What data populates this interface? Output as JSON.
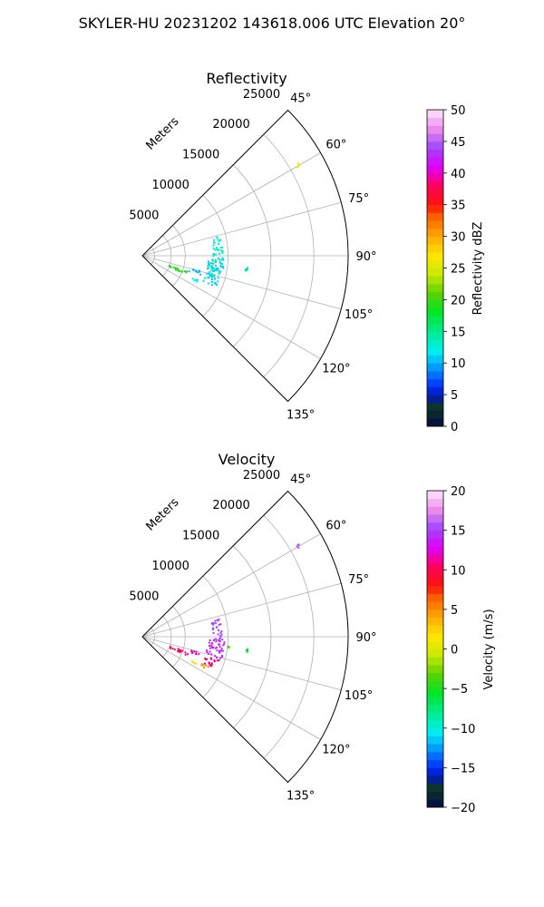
{
  "figure": {
    "title": "SKYLER-HU  20231202  143618.006 UTC Elevation 20°"
  },
  "chart_data": [
    {
      "type": "scatter",
      "projection": "polar-sector",
      "title": "Reflectivity",
      "radial_axis": {
        "label": "Meters",
        "ticks": [
          5000,
          10000,
          15000,
          20000,
          25000
        ],
        "tick_labels": [
          "5000",
          "10000",
          "15000",
          "20000",
          "25000"
        ],
        "rlim": [
          0,
          24000
        ]
      },
      "azimuth_axis": {
        "ticks": [
          45,
          60,
          75,
          90,
          105,
          120,
          135
        ],
        "tick_labels": [
          "45°",
          "60°",
          "75°",
          "90°",
          "105°",
          "120°",
          "135°"
        ],
        "range": [
          45,
          135
        ]
      },
      "grid": true,
      "colorbar": {
        "label": "Reflectivity dBZ",
        "range": [
          0,
          50
        ],
        "ticks": [
          "0",
          "5",
          "10",
          "15",
          "20",
          "25",
          "30",
          "35",
          "40",
          "45",
          "50"
        ]
      },
      "clusters": [
        {
          "az": [
            92,
            106
          ],
          "range": [
            8000,
            8600
          ],
          "value": 16
        },
        {
          "az": [
            75,
            93
          ],
          "range": [
            8100,
            9300
          ],
          "value": 13
        },
        {
          "az": [
            92,
            106
          ],
          "range": [
            7500,
            9500
          ],
          "value": 11
        },
        {
          "az": [
            106,
            113
          ],
          "range": [
            7500,
            9300
          ],
          "value": 11
        },
        {
          "az": [
            104,
            108
          ],
          "range": [
            5500,
            7000
          ],
          "value": 10
        },
        {
          "az": [
            113,
            115
          ],
          "range": [
            6200,
            6900
          ],
          "value": 12
        },
        {
          "az": [
            108,
            112
          ],
          "range": [
            4200,
            5600
          ],
          "value": 19
        },
        {
          "az": [
            108,
            112
          ],
          "range": [
            3000,
            4500
          ],
          "value": 19
        },
        {
          "az": [
            96,
            98
          ],
          "range": [
            12000,
            12300
          ],
          "value": 15
        },
        {
          "az": [
            59,
            60
          ],
          "range": [
            20800,
            21200
          ],
          "value": 26
        }
      ]
    },
    {
      "type": "scatter",
      "projection": "polar-sector",
      "title": "Velocity",
      "radial_axis": {
        "label": "Meters",
        "ticks": [
          5000,
          10000,
          15000,
          20000,
          25000
        ],
        "tick_labels": [
          "5000",
          "10000",
          "15000",
          "20000",
          "25000"
        ],
        "rlim": [
          0,
          24000
        ]
      },
      "azimuth_axis": {
        "ticks": [
          45,
          60,
          75,
          90,
          105,
          120,
          135
        ],
        "tick_labels": [
          "45°",
          "60°",
          "75°",
          "90°",
          "105°",
          "120°",
          "135°"
        ],
        "range": [
          45,
          135
        ]
      },
      "grid": true,
      "colorbar": {
        "label": "Velocity (m/s)",
        "range": [
          -20,
          20
        ],
        "ticks": [
          "−20",
          "−15",
          "−10",
          "−5",
          "0",
          "5",
          "10",
          "15",
          "20"
        ]
      },
      "clusters": [
        {
          "az": [
            75,
            93
          ],
          "range": [
            8100,
            9300
          ],
          "value": 15
        },
        {
          "az": [
            92,
            106
          ],
          "range": [
            7500,
            9500
          ],
          "value": 14
        },
        {
          "az": [
            104,
            108
          ],
          "range": [
            5500,
            7000
          ],
          "value": 12
        },
        {
          "az": [
            106,
            113
          ],
          "range": [
            7500,
            9300
          ],
          "value": 11
        },
        {
          "az": [
            108,
            112
          ],
          "range": [
            4200,
            5600
          ],
          "value": 11
        },
        {
          "az": [
            108,
            112
          ],
          "range": [
            3000,
            4500
          ],
          "value": 10
        },
        {
          "az": [
            113,
            117
          ],
          "range": [
            7500,
            8500
          ],
          "value": 5
        },
        {
          "az": [
            116,
            117
          ],
          "range": [
            6300,
            6900
          ],
          "value": 2
        },
        {
          "az": [
            96,
            98
          ],
          "range": [
            12000,
            12300
          ],
          "value": -6
        },
        {
          "az": [
            96,
            97
          ],
          "range": [
            9900,
            10200
          ],
          "value": -4
        },
        {
          "az": [
            59,
            60
          ],
          "range": [
            20800,
            21200
          ],
          "value": 16
        }
      ]
    }
  ]
}
